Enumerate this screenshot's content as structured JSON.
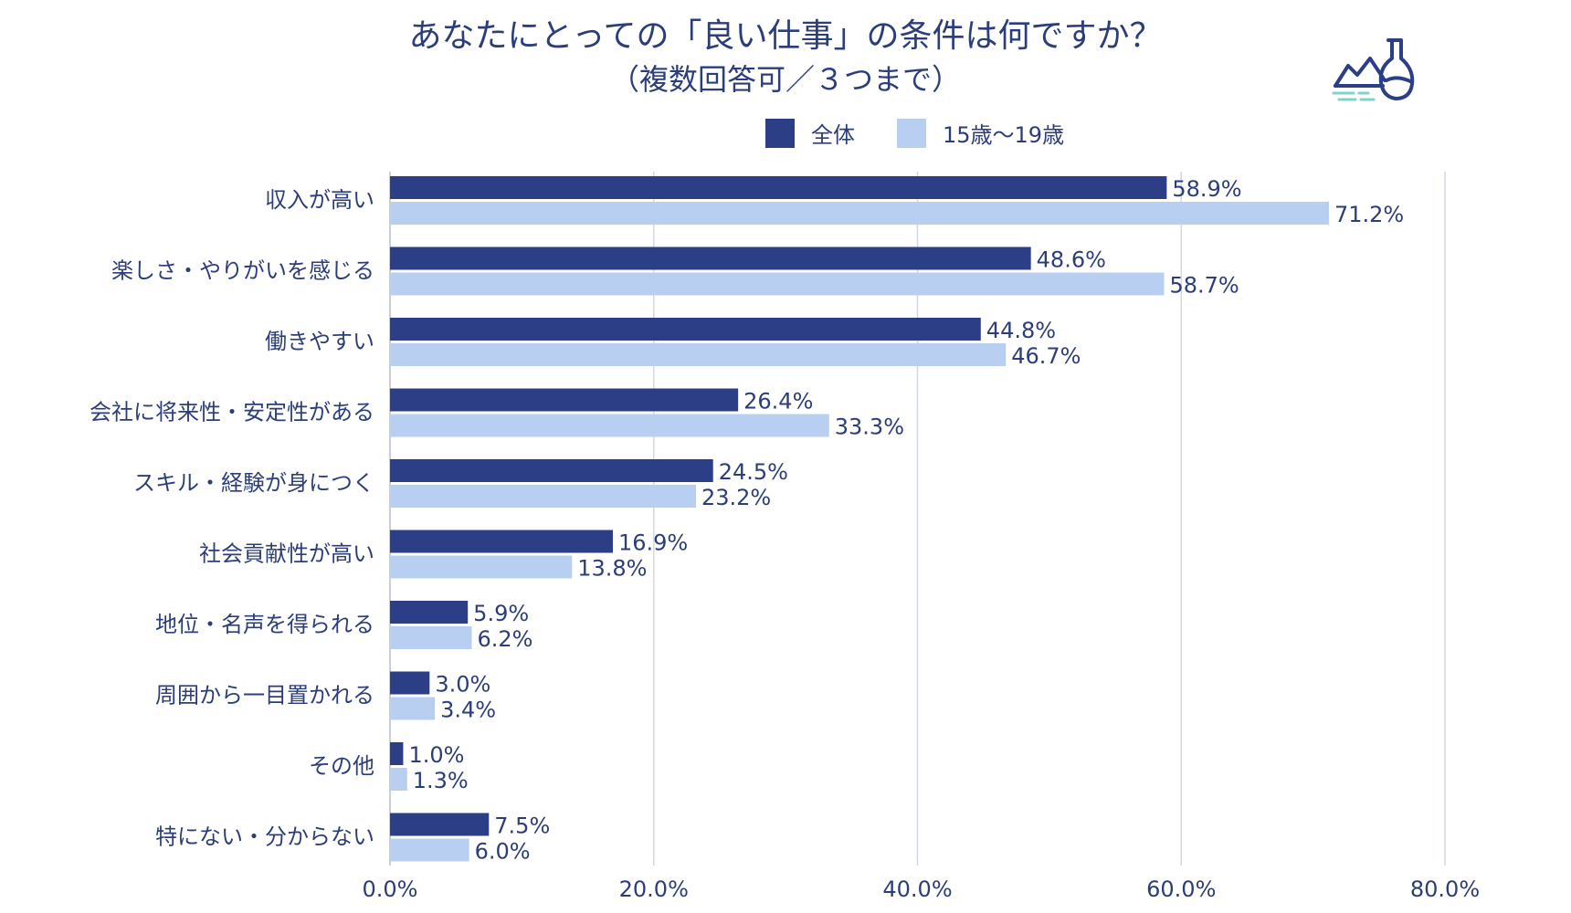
{
  "title": "あなたにとっての「良い仕事」の条件は何ですか？",
  "subtitle": "（複数回答可／３つまで）",
  "logo_icon": "flask-landscape-icon",
  "chart_data": {
    "type": "bar",
    "orientation": "horizontal",
    "categories": [
      "収入が高い",
      "楽しさ・やりがいを感じる",
      "働きやすい",
      "会社に将来性・安定性がある",
      "スキル・経験が身につく",
      "社会貢献性が高い",
      "地位・名声を得られる",
      "周囲から一目置かれる",
      "その他",
      "特にない・分からない"
    ],
    "series": [
      {
        "name": "全体",
        "color": "#2c3e86",
        "values": [
          58.9,
          48.6,
          44.8,
          26.4,
          24.5,
          16.9,
          5.9,
          3.0,
          1.0,
          7.5
        ],
        "labels": [
          "58.9%",
          "48.6%",
          "44.8%",
          "26.4%",
          "24.5%",
          "16.9%",
          "5.9%",
          "3.0%",
          "1.0%",
          "7.5%"
        ]
      },
      {
        "name": "15歳〜19歳",
        "color": "#b8cff2",
        "values": [
          71.2,
          58.7,
          46.7,
          33.3,
          23.2,
          13.8,
          6.2,
          3.4,
          1.3,
          6.0
        ],
        "labels": [
          "71.2%",
          "58.7%",
          "46.7%",
          "33.3%",
          "23.2%",
          "13.8%",
          "6.2%",
          "3.4%",
          "1.3%",
          "6.0%"
        ]
      }
    ],
    "xlim": [
      0,
      80
    ],
    "ticks": [
      0,
      20,
      40,
      60,
      80
    ],
    "tick_labels": [
      "0.0%",
      "20.0%",
      "40.0%",
      "60.0%",
      "80.0%"
    ],
    "grid": true,
    "legend_position": "top-center"
  }
}
